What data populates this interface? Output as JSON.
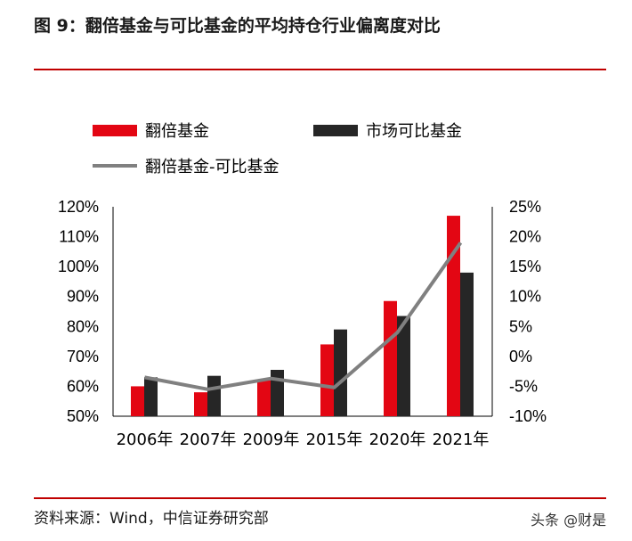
{
  "header": {
    "title": "图 9：翻倍基金与可比基金的平均持仓行业偏离度对比"
  },
  "footer": {
    "source": "资料来源：Wind，中信证券研究部",
    "watermark": "头条 @财是"
  },
  "chart_data": {
    "type": "bar",
    "categories": [
      "2006年",
      "2007年",
      "2009年",
      "2015年",
      "2020年",
      "2021年"
    ],
    "series": [
      {
        "name": "翻倍基金",
        "kind": "bar",
        "axis": "left",
        "color": "#e30613",
        "values": [
          60,
          58,
          62,
          74,
          88.5,
          117
        ]
      },
      {
        "name": "市场可比基金",
        "kind": "bar",
        "axis": "left",
        "color": "#262626",
        "values": [
          63,
          63.5,
          65.5,
          79,
          83.5,
          98
        ]
      },
      {
        "name": "翻倍基金-可比基金",
        "kind": "line",
        "axis": "right",
        "color": "#808080",
        "values": [
          -3.5,
          -5.5,
          -3.7,
          -5.2,
          4,
          19
        ]
      }
    ],
    "left_axis": {
      "min": 50,
      "max": 120,
      "step": 10,
      "format": "percent",
      "tick_labels": [
        "50%",
        "60%",
        "70%",
        "80%",
        "90%",
        "100%",
        "110%",
        "120%"
      ]
    },
    "right_axis": {
      "min": -10,
      "max": 25,
      "step": 5,
      "format": "percent",
      "tick_labels": [
        "-10%",
        "-5%",
        "0%",
        "5%",
        "10%",
        "15%",
        "20%",
        "25%"
      ]
    },
    "legend": {
      "placement": "top-left"
    },
    "grid": false
  }
}
